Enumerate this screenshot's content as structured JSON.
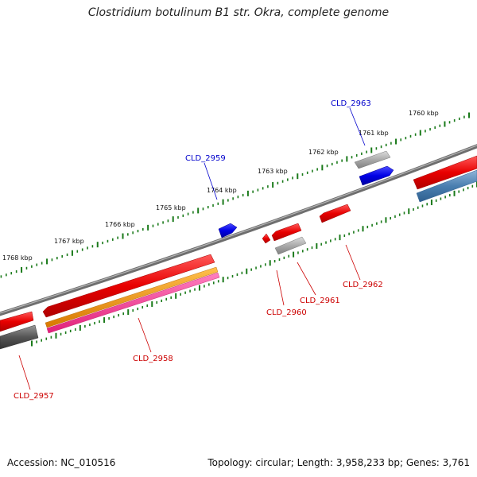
{
  "title": "Clostridium botulinum B1 str. Okra, complete genome",
  "footer": {
    "accession": "Accession: NC_010516",
    "summary": "Topology: circular; Length: 3,958,233 bp; Genes: 3,761"
  },
  "ruler_labels": [
    "1760 kbp",
    "1761 kbp",
    "1762 kbp",
    "1763 kbp",
    "1764 kbp",
    "1765 kbp",
    "1766 kbp",
    "1767 kbp",
    "1768 kbp"
  ],
  "gene_labels": {
    "cld_2963": "CLD_2963",
    "cld_2959": "CLD_2959",
    "cld_2962": "CLD_2962",
    "cld_2961": "CLD_2961",
    "cld_2960": "CLD_2960",
    "cld_2958": "CLD_2958",
    "cld_2957": "CLD_2957"
  },
  "colors": {
    "forward_label": "#0000cc",
    "reverse_label": "#cc0000",
    "backbone": "#777777",
    "ruler_ticks": "#1a7a1a",
    "red": "#e80000",
    "blue": "#0000e6",
    "grey": "#a8a8a8",
    "orange": "#f08c00",
    "pink": "#ff3399",
    "steel": "#4a7fb0",
    "darkgrey": "#555555"
  }
}
